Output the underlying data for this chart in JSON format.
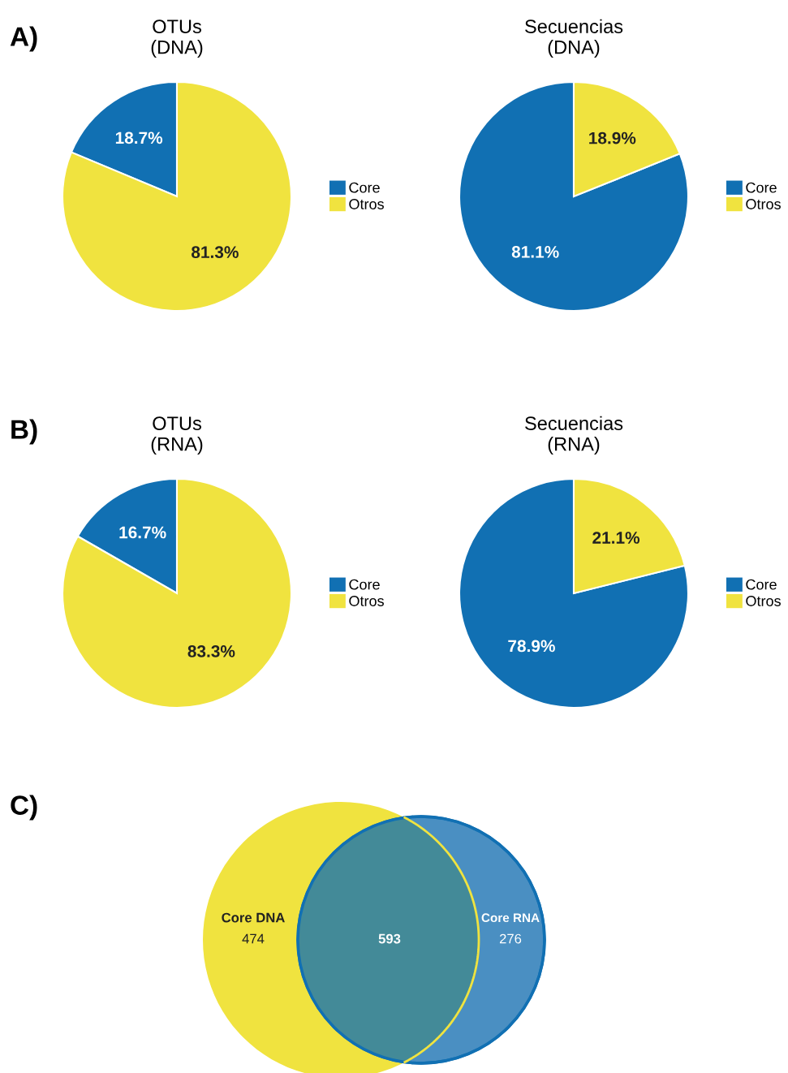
{
  "chart_data": [
    {
      "type": "pie",
      "title": "OTUs\n(DNA)",
      "categories": [
        "Core",
        "Otros"
      ],
      "values": [
        18.7,
        81.3
      ],
      "colors": [
        "#1170b3",
        "#f0e33f"
      ],
      "value_labels": [
        "18.7%",
        "81.3%"
      ],
      "legend": "right",
      "annotations": [
        "A)"
      ]
    },
    {
      "type": "pie",
      "title": "Secuencias\n(DNA)",
      "categories": [
        "Core",
        "Otros"
      ],
      "values": [
        81.1,
        18.9
      ],
      "colors": [
        "#1170b3",
        "#f0e33f"
      ],
      "value_labels": [
        "81.1%",
        "18.9%"
      ],
      "legend": "right"
    },
    {
      "type": "pie",
      "title": "OTUs\n(RNA)",
      "categories": [
        "Core",
        "Otros"
      ],
      "values": [
        16.7,
        83.3
      ],
      "colors": [
        "#1170b3",
        "#f0e33f"
      ],
      "value_labels": [
        "16.7%",
        "83.3%"
      ],
      "legend": "right",
      "annotations": [
        "B)"
      ]
    },
    {
      "type": "pie",
      "title": "Secuencias\n(RNA)",
      "categories": [
        "Core",
        "Otros"
      ],
      "values": [
        78.9,
        21.1
      ],
      "colors": [
        "#1170b3",
        "#f0e33f"
      ],
      "value_labels": [
        "78.9%",
        "21.1%"
      ],
      "legend": "right"
    },
    {
      "type": "other",
      "categories": [
        "Core DNA",
        null,
        "Core RNA"
      ],
      "values": [
        474,
        593,
        276
      ],
      "colors": [
        "#f0e33f",
        "#438a98",
        "#4a8fc2"
      ],
      "data_labels": true,
      "annotations": [
        "C)"
      ]
    }
  ]
}
